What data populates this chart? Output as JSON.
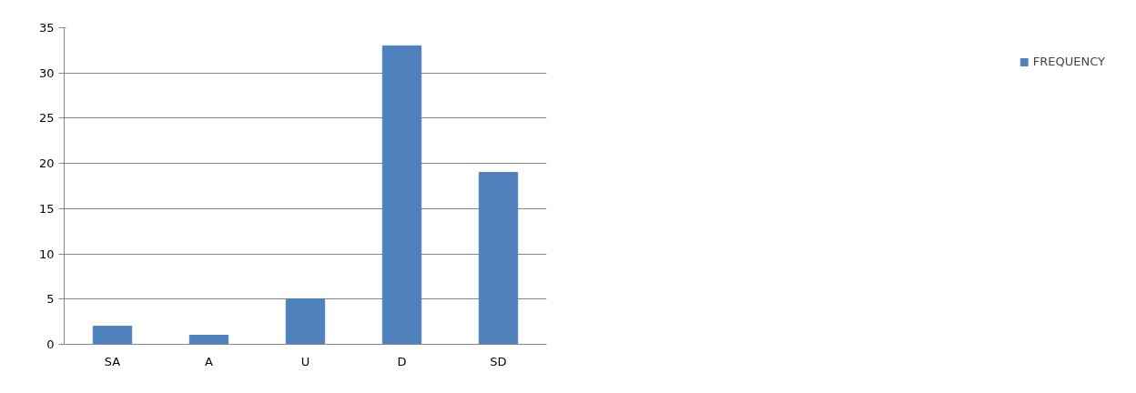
{
  "chart_data": {
    "type": "bar",
    "categories": [
      "SA",
      "A",
      "U",
      "D",
      "SD"
    ],
    "series": [
      {
        "name": "FREQUENCY",
        "color": "#4f81bd",
        "values": [
          2,
          1,
          5,
          33,
          19
        ]
      }
    ],
    "ylim": [
      0,
      35
    ],
    "yticks": [
      0,
      5,
      10,
      15,
      20,
      25,
      30,
      35
    ],
    "grid": "y",
    "legend": "right"
  }
}
